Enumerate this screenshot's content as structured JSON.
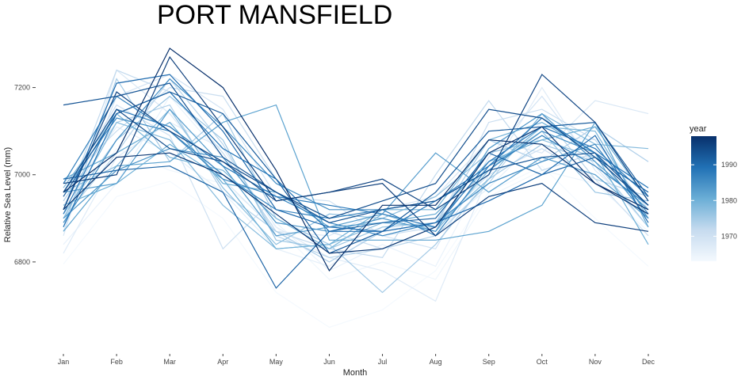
{
  "chart_data": {
    "type": "line",
    "title": "PORT MANSFIELD",
    "xlabel": "Month",
    "ylabel": "Relative Sea Level (mm)",
    "categories": [
      "Jan",
      "Feb",
      "Mar",
      "Apr",
      "May",
      "Jun",
      "Jul",
      "Aug",
      "Sep",
      "Oct",
      "Nov",
      "Dec"
    ],
    "ylim": [
      6620,
      7310
    ],
    "yticks": [
      6800,
      7000,
      7200
    ],
    "ytick_labels": [
      "6800",
      "7000",
      "7200"
    ],
    "grid": false,
    "legend": {
      "title": "year",
      "placement": "right",
      "type": "colorbar",
      "range": [
        1963,
        1998
      ],
      "ticks": [
        1970,
        1980,
        1990
      ],
      "tick_labels": [
        "1970",
        "1980",
        "1990"
      ],
      "colors": [
        "#f4f9fe",
        "#c6dbef",
        "#6baed6",
        "#2171b5",
        "#08306b"
      ]
    },
    "series": [
      {
        "year": 1963,
        "values": [
          6795,
          6950,
          6985,
          6900,
          6730,
          6650,
          6690,
          6780,
          6960,
          7020,
          6900,
          6790
        ]
      },
      {
        "year": 1964,
        "values": [
          6900,
          7060,
          7010,
          6980,
          6880,
          6760,
          6800,
          6760,
          6950,
          7010,
          6980,
          6870
        ]
      },
      {
        "year": 1965,
        "values": [
          6840,
          6980,
          7180,
          7040,
          6890,
          6780,
          6840,
          6790,
          7020,
          7120,
          7060,
          6910
        ]
      },
      {
        "year": 1966,
        "values": [
          6930,
          7110,
          7050,
          6960,
          6830,
          6790,
          6880,
          6870,
          6970,
          7090,
          7080,
          6950
        ]
      },
      {
        "year": 1967,
        "values": [
          6820,
          7040,
          7120,
          7060,
          6880,
          6810,
          6780,
          6710,
          7000,
          7200,
          7010,
          6900
        ]
      },
      {
        "year": 1968,
        "values": [
          6860,
          7240,
          7140,
          6990,
          6870,
          6860,
          6920,
          6950,
          7080,
          7050,
          7170,
          7140
        ]
      },
      {
        "year": 1969,
        "values": [
          6870,
          7180,
          7230,
          7150,
          6950,
          6890,
          6860,
          6830,
          7040,
          7180,
          7020,
          6880
        ]
      },
      {
        "year": 1970,
        "values": [
          6960,
          7160,
          7090,
          6830,
          6950,
          6940,
          6860,
          6880,
          7000,
          7060,
          6990,
          6860
        ]
      },
      {
        "year": 1971,
        "values": [
          6980,
          7100,
          7200,
          7180,
          6990,
          6870,
          6830,
          6880,
          7120,
          7150,
          7080,
          6920
        ]
      },
      {
        "year": 1972,
        "values": [
          6920,
          7240,
          7190,
          7050,
          6870,
          6830,
          6810,
          7000,
          7170,
          7010,
          7050,
          6900
        ]
      },
      {
        "year": 1973,
        "values": [
          6900,
          7050,
          7220,
          7070,
          6860,
          6810,
          6830,
          6860,
          6980,
          7140,
          6990,
          6950
        ]
      },
      {
        "year": 1974,
        "values": [
          6940,
          7120,
          7160,
          6960,
          6870,
          6800,
          6870,
          6890,
          7080,
          7030,
          7110,
          7030
        ]
      },
      {
        "year": 1975,
        "values": [
          6880,
          7220,
          7030,
          7140,
          6900,
          6840,
          6730,
          6840,
          6990,
          7070,
          7030,
          6880
        ]
      },
      {
        "year": 1976,
        "values": [
          6910,
          7080,
          7180,
          7080,
          6850,
          6830,
          6880,
          6890,
          7020,
          7100,
          6960,
          6940
        ]
      },
      {
        "year": 1977,
        "values": [
          6960,
          7020,
          7150,
          6970,
          6840,
          6910,
          6900,
          6950,
          7050,
          7080,
          7040,
          6960
        ]
      },
      {
        "year": 1978,
        "values": [
          6900,
          7120,
          7080,
          6930,
          6830,
          6840,
          6890,
          6880,
          6990,
          7140,
          7070,
          7060
        ]
      },
      {
        "year": 1979,
        "values": [
          6970,
          7140,
          7040,
          7010,
          6900,
          6830,
          6910,
          6870,
          7010,
          7110,
          7100,
          6900
        ]
      },
      {
        "year": 1980,
        "values": [
          6930,
          6980,
          7070,
          6990,
          6830,
          6840,
          6920,
          6920,
          7080,
          7120,
          7050,
          6840
        ]
      },
      {
        "year": 1981,
        "values": [
          6990,
          7050,
          7120,
          6980,
          6960,
          6880,
          6890,
          6910,
          7030,
          7080,
          7110,
          6940
        ]
      },
      {
        "year": 1982,
        "values": [
          6870,
          7020,
          7030,
          7120,
          7160,
          6850,
          6850,
          6850,
          6870,
          6930,
          7120,
          6880
        ]
      },
      {
        "year": 1983,
        "values": [
          6960,
          6980,
          7150,
          7020,
          6860,
          6880,
          6910,
          7050,
          6960,
          7040,
          7000,
          6900
        ]
      },
      {
        "year": 1984,
        "values": [
          6900,
          7010,
          7060,
          7040,
          6890,
          6870,
          6900,
          6870,
          7060,
          7140,
          7030,
          6920
        ]
      },
      {
        "year": 1985,
        "values": [
          6890,
          7080,
          7220,
          7110,
          6980,
          6920,
          6920,
          6940,
          7010,
          7100,
          7050,
          6900
        ]
      },
      {
        "year": 1986,
        "values": [
          6960,
          7130,
          7100,
          6990,
          6950,
          6890,
          6860,
          6890,
          6980,
          7030,
          7070,
          6910
        ]
      },
      {
        "year": 1987,
        "values": [
          6980,
          7180,
          7100,
          7000,
          6920,
          6900,
          6920,
          6860,
          7020,
          7090,
          7020,
          6930
        ]
      },
      {
        "year": 1988,
        "values": [
          6910,
          7150,
          7110,
          7020,
          6950,
          6930,
          6910,
          6880,
          7030,
          7110,
          7060,
          6950
        ]
      },
      {
        "year": 1989,
        "values": [
          6880,
          7140,
          7190,
          7060,
          6990,
          6870,
          6870,
          6940,
          7020,
          7130,
          7050,
          6970
        ]
      },
      {
        "year": 1990,
        "values": [
          6920,
          7210,
          7230,
          7100,
          6920,
          6880,
          6870,
          6890,
          6940,
          7000,
          7090,
          6890
        ]
      },
      {
        "year": 1991,
        "values": [
          6990,
          7010,
          7020,
          6960,
          6740,
          6870,
          6890,
          6900,
          7050,
          7000,
          7040,
          6960
        ]
      },
      {
        "year": 1992,
        "values": [
          6950,
          7140,
          7190,
          7140,
          6990,
          6820,
          6870,
          6960,
          7100,
          7110,
          7120,
          6950
        ]
      },
      {
        "year": 1993,
        "values": [
          7160,
          7180,
          7210,
          7040,
          6960,
          6890,
          6920,
          6940,
          7010,
          7040,
          7050,
          6930
        ]
      },
      {
        "year": 1994,
        "values": [
          6960,
          7150,
          7060,
          7030,
          6960,
          6900,
          6940,
          6980,
          7150,
          7130,
          7040,
          6930
        ]
      },
      {
        "year": 1995,
        "values": [
          6920,
          7190,
          7100,
          7030,
          6940,
          6960,
          6990,
          6920,
          7000,
          7230,
          7120,
          6940
        ]
      },
      {
        "year": 1996,
        "values": [
          6980,
          7000,
          7270,
          7110,
          6940,
          6960,
          6980,
          6860,
          6950,
          6980,
          6890,
          6870
        ]
      },
      {
        "year": 1997,
        "values": [
          6920,
          7040,
          7050,
          7000,
          6910,
          6820,
          6830,
          6880,
          7050,
          7110,
          6980,
          6910
        ]
      },
      {
        "year": 1998,
        "values": [
          6960,
          7050,
          7290,
          7200,
          7010,
          6780,
          6930,
          6930,
          7080,
          7070,
          6980,
          6920
        ]
      }
    ]
  }
}
